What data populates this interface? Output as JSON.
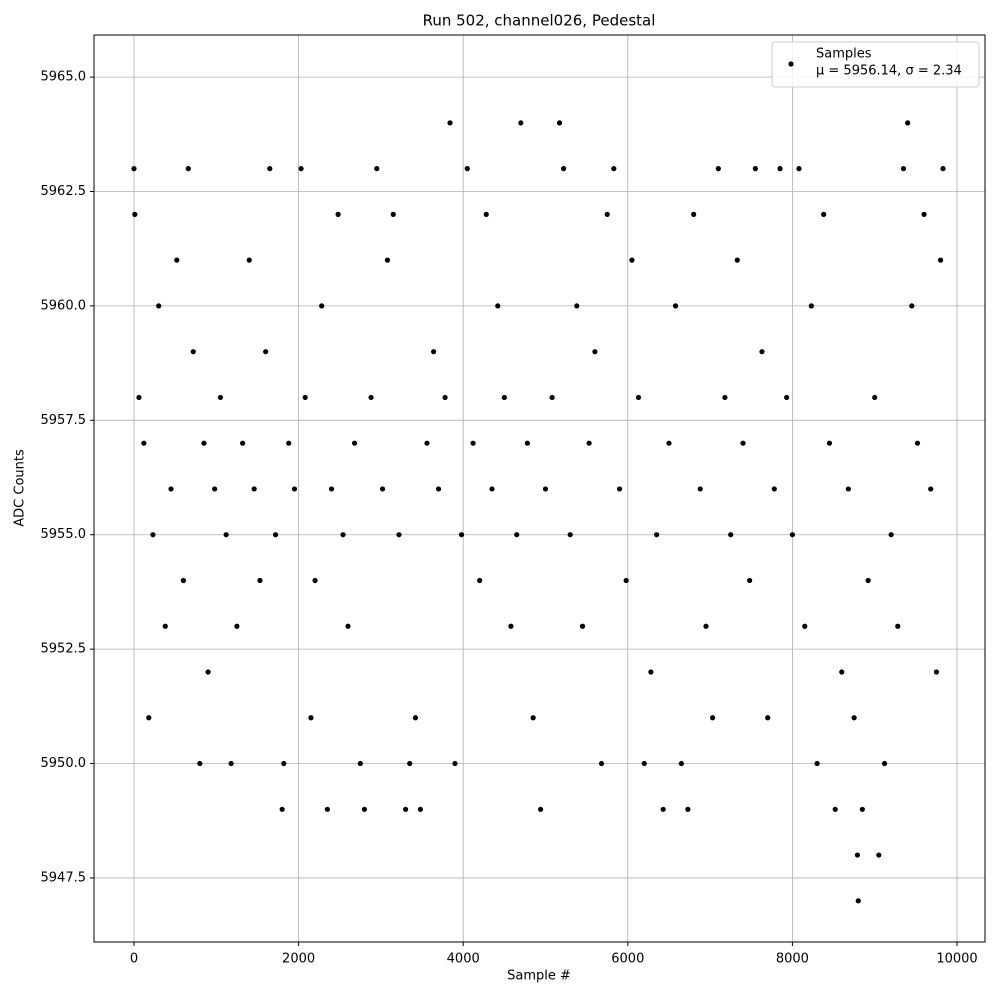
{
  "chart_data": {
    "type": "scatter",
    "title": "Run 502, channel026, Pedestal",
    "xlabel": "Sample #",
    "ylabel": "ADC Counts",
    "xlim": [
      -486,
      10340
    ],
    "ylim": [
      5946.1,
      5965.92
    ],
    "xticks": [
      0,
      2000,
      4000,
      6000,
      8000,
      10000
    ],
    "yticks": [
      5947.5,
      {
        "value": 5950,
        "label": "5950.0"
      },
      5952.5,
      {
        "value": 5955,
        "label": "5955.0"
      },
      5957.5,
      {
        "value": 5960,
        "label": "5960.0"
      },
      5962.5,
      {
        "value": 5965,
        "label": "5965.0"
      }
    ],
    "grid": true,
    "legend": "upper right",
    "legend_note": "μ = 5956.14, σ = 2.34",
    "series": [
      {
        "name": "Samples",
        "color": "#000000",
        "x": [
          0,
          10,
          60,
          120,
          180,
          230,
          300,
          380,
          450,
          520,
          600,
          660,
          720,
          800,
          850,
          900,
          980,
          1050,
          1120,
          1180,
          1250,
          1320,
          1400,
          1460,
          1530,
          1600,
          1650,
          1720,
          1800,
          1820,
          1880,
          1950,
          2030,
          2080,
          2150,
          2200,
          2280,
          2350,
          2400,
          2480,
          2540,
          2600,
          2680,
          2750,
          2800,
          2880,
          2950,
          3020,
          3080,
          3150,
          3220,
          3300,
          3350,
          3420,
          3480,
          3560,
          3640,
          3700,
          3780,
          3840,
          3900,
          3980,
          4050,
          4120,
          4200,
          4280,
          4350,
          4420,
          4500,
          4580,
          4650,
          4700,
          4780,
          4850,
          4940,
          5000,
          5080,
          5170,
          5220,
          5300,
          5380,
          5450,
          5530,
          5600,
          5680,
          5750,
          5830,
          5900,
          5980,
          6050,
          6130,
          6200,
          6280,
          6350,
          6430,
          6500,
          6580,
          6650,
          6730,
          6800,
          6880,
          6950,
          7030,
          7100,
          7180,
          7250,
          7330,
          7400,
          7480,
          7550,
          7630,
          7700,
          7780,
          7850,
          7930,
          8000,
          8080,
          8150,
          8230,
          8300,
          8380,
          8450,
          8520,
          8600,
          8680,
          8750,
          8790,
          8800,
          8850,
          8920,
          9000,
          9050,
          9120,
          9200,
          9280,
          9350,
          9400,
          9450,
          9520,
          9600,
          9680,
          9750,
          9800,
          9830
        ],
        "values": [
          5963,
          5962,
          5958,
          5957,
          5951,
          5955,
          5960,
          5953,
          5956,
          5961,
          5954,
          5963,
          5959,
          5950,
          5957,
          5952,
          5956,
          5958,
          5955,
          5950,
          5953,
          5957,
          5961,
          5956,
          5954,
          5959,
          5963,
          5955,
          5949,
          5950,
          5957,
          5956,
          5963,
          5958,
          5951,
          5954,
          5960,
          5949,
          5956,
          5962,
          5955,
          5953,
          5957,
          5950,
          5949,
          5958,
          5963,
          5956,
          5961,
          5962,
          5955,
          5949,
          5950,
          5951,
          5949,
          5957,
          5959,
          5956,
          5958,
          5964,
          5950,
          5955,
          5963,
          5957,
          5954,
          5962,
          5956,
          5960,
          5958,
          5953,
          5955,
          5964,
          5957,
          5951,
          5949,
          5956,
          5958,
          5964,
          5963,
          5955,
          5960,
          5953,
          5957,
          5959,
          5950,
          5962,
          5963,
          5956,
          5954,
          5961,
          5958,
          5950,
          5952,
          5955,
          5949,
          5957,
          5960,
          5950,
          5949,
          5962,
          5956,
          5953,
          5951,
          5963,
          5958,
          5955,
          5961,
          5957,
          5954,
          5963,
          5959,
          5951,
          5956,
          5963,
          5958,
          5955,
          5963,
          5953,
          5960,
          5950,
          5962,
          5957,
          5949,
          5952,
          5956,
          5951,
          5948,
          5947,
          5949,
          5954,
          5958,
          5948,
          5950,
          5955,
          5953,
          5963,
          5964,
          5960,
          5957,
          5962,
          5956,
          5952,
          5961,
          5963
        ]
      }
    ]
  }
}
